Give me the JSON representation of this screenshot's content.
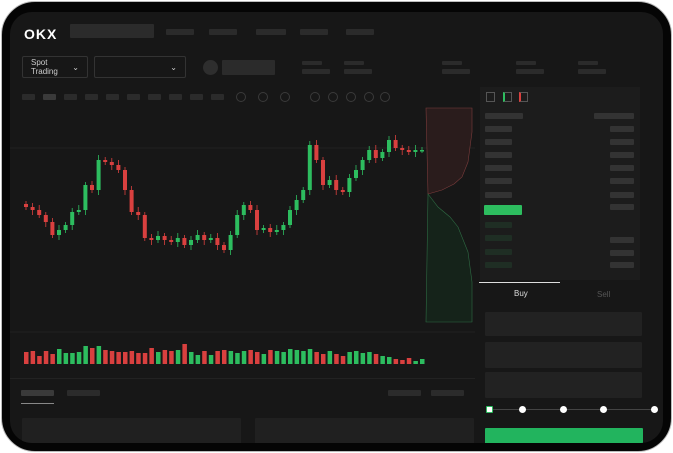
{
  "header": {
    "logo": "OKX",
    "market_selector": "Spot Trading"
  },
  "trade_panel": {
    "tabs": [
      "Buy",
      "Sell"
    ],
    "active_tab": "Buy"
  },
  "colors": {
    "up": "#2dbd5f",
    "down": "#d9403f",
    "background": "#171717",
    "accent": "#22b45e"
  },
  "chart_data": {
    "type": "candlestick",
    "closes": [
      93,
      90,
      85,
      78,
      65,
      70,
      75,
      88,
      90,
      115,
      110,
      140,
      138,
      135,
      130,
      110,
      88,
      85,
      62,
      60,
      64,
      60,
      58,
      62,
      55,
      60,
      65,
      60,
      62,
      55,
      50,
      65,
      85,
      95,
      90,
      70,
      72,
      68,
      70,
      75,
      90,
      100,
      110,
      155,
      140,
      115,
      120,
      110,
      108,
      122,
      130,
      140,
      150,
      142,
      148,
      160,
      152,
      150,
      148,
      150,
      150
    ],
    "volumes": [
      12,
      13,
      8,
      13,
      10,
      15,
      11,
      11,
      12,
      18,
      16,
      18,
      14,
      13,
      12,
      12,
      13,
      11,
      11,
      16,
      12,
      14,
      13,
      14,
      20,
      12,
      9,
      13,
      9,
      13,
      14,
      13,
      11,
      13,
      14,
      12,
      10,
      14,
      13,
      12,
      15,
      14,
      13,
      15,
      12,
      10,
      13,
      10,
      8,
      12,
      13,
      11,
      12,
      10,
      8,
      7,
      5,
      4,
      6,
      3,
      5
    ]
  }
}
